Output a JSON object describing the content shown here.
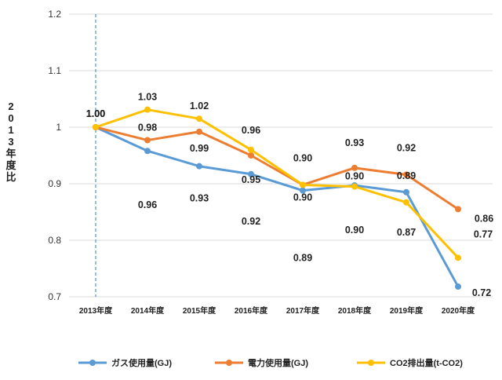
{
  "chart_data": {
    "type": "line",
    "categories": [
      "2013年度",
      "2014年度",
      "2015年度",
      "2016年度",
      "2017年度",
      "2018年度",
      "2019年度",
      "2020年度"
    ],
    "ylabel": "2013年度比",
    "ylim": [
      0.7,
      1.2
    ],
    "yticks": [
      "0.7",
      "0.8",
      "0.9",
      "1",
      "1.1",
      "1.2"
    ],
    "grid": true,
    "legend_position": "bottom",
    "reference_line": {
      "category": "2013年度",
      "style": "dashed",
      "color": "#5b9bd5"
    },
    "series": [
      {
        "name": "ガス使用量(GJ)",
        "color": "#5b9bd5",
        "values": [
          1.0,
          0.958,
          0.931,
          0.917,
          0.888,
          0.897,
          0.885,
          0.718
        ],
        "labels": [
          "1.00",
          "0.96",
          "0.93",
          "0.92",
          "0.89",
          "0.90",
          "0.89",
          "0.72"
        ]
      },
      {
        "name": "電力使用量(GJ)",
        "color": "#ed7d31",
        "values": [
          1.0,
          0.977,
          0.992,
          0.95,
          0.898,
          0.928,
          0.916,
          0.855
        ],
        "labels": [
          "1.00",
          "0.98",
          "0.99",
          "0.95",
          "0.90",
          "0.93",
          "0.92",
          "0.86"
        ]
      },
      {
        "name": "CO2排出量(t-CO2)",
        "color": "#ffc000",
        "values": [
          1.0,
          1.031,
          1.015,
          0.96,
          0.898,
          0.895,
          0.867,
          0.769
        ],
        "labels": [
          "1.00",
          "1.03",
          "1.02",
          "0.96",
          "0.90",
          "0.90",
          "0.87",
          "0.77"
        ]
      }
    ]
  }
}
